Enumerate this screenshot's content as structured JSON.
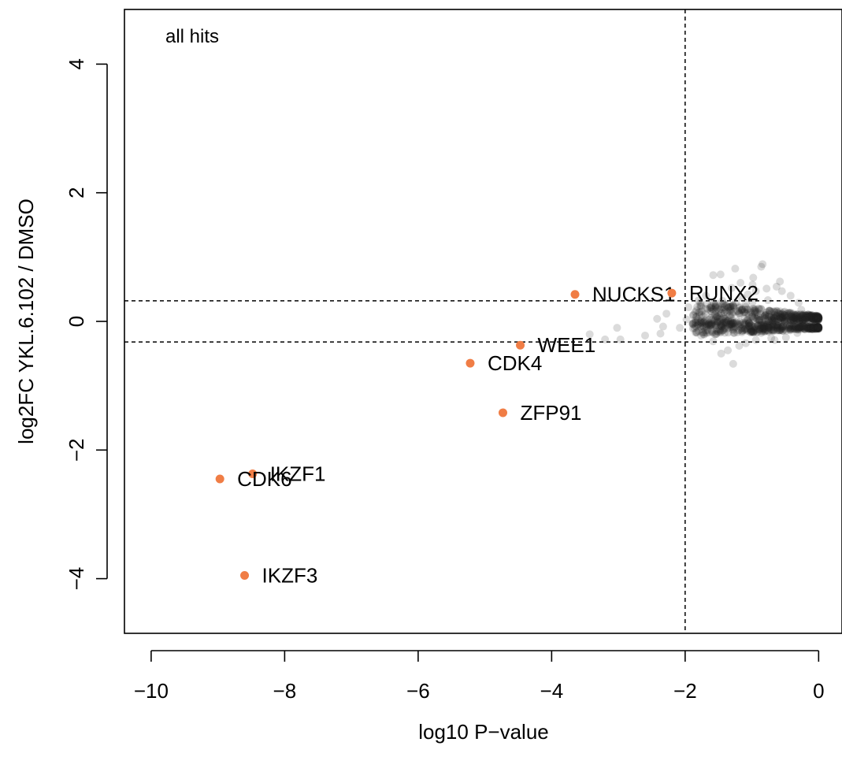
{
  "chart_data": {
    "type": "scatter",
    "panel_label": "all hits",
    "xlabel": "log10 P−value",
    "ylabel": "log2FC  YKL.6.102  / DMSO",
    "xlim": [
      -10.4,
      0.35
    ],
    "ylim": [
      -4.85,
      4.85
    ],
    "x_ticks": [
      -10,
      -8,
      -6,
      -4,
      -2,
      0
    ],
    "x_tick_labels": [
      "−10",
      "−8",
      "−6",
      "−4",
      "−2",
      "0"
    ],
    "y_ticks": [
      -4,
      -2,
      0,
      2,
      4
    ],
    "y_tick_labels": [
      "−4",
      "−2",
      "0",
      "2",
      "4"
    ],
    "threshold_lines": {
      "x": [
        -2
      ],
      "y": [
        0.32,
        -0.32
      ]
    },
    "colors": {
      "highlight": "#f07d45",
      "background_points": "#202020",
      "axis": "#000000"
    },
    "highlighted_hits": [
      {
        "gene": "NUCKS1",
        "x": -3.65,
        "y": 0.42
      },
      {
        "gene": "RUNX2",
        "x": -2.2,
        "y": 0.44
      },
      {
        "gene": "WEE1",
        "x": -4.47,
        "y": -0.37
      },
      {
        "gene": "CDK4",
        "x": -5.22,
        "y": -0.65
      },
      {
        "gene": "ZFP91",
        "x": -4.73,
        "y": -1.42
      },
      {
        "gene": "IKZF1",
        "x": -8.48,
        "y": -2.37
      },
      {
        "gene": "CDK6",
        "x": -8.97,
        "y": -2.45
      },
      {
        "gene": "IKZF3",
        "x": -8.6,
        "y": -3.95
      }
    ],
    "background_points": [
      [
        -1.58,
        0.72
      ],
      [
        -1.47,
        0.73
      ],
      [
        -1.17,
        0.6
      ],
      [
        -0.98,
        0.68
      ],
      [
        -0.86,
        0.85
      ],
      [
        -0.84,
        0.89
      ],
      [
        -0.94,
        0.47
      ],
      [
        -1.06,
        0.42
      ],
      [
        -1.3,
        0.52
      ],
      [
        -1.44,
        0.32
      ],
      [
        -1.67,
        0.27
      ],
      [
        -1.8,
        0.14
      ],
      [
        -2.28,
        0.12
      ],
      [
        -1.95,
        0.22
      ],
      [
        -1.69,
        0.4
      ],
      [
        -1.25,
        0.82
      ],
      [
        -1.15,
        0.37
      ],
      [
        -0.99,
        0.57
      ],
      [
        -0.63,
        0.54
      ],
      [
        -0.55,
        0.47
      ],
      [
        -0.42,
        0.4
      ],
      [
        -0.3,
        0.29
      ],
      [
        -0.58,
        0.62
      ],
      [
        -0.78,
        0.51
      ],
      [
        -2.6,
        -0.22
      ],
      [
        -2.37,
        -0.19
      ],
      [
        -2.97,
        -0.28
      ],
      [
        -3.2,
        -0.28
      ],
      [
        -3.43,
        -0.2
      ],
      [
        -3.02,
        -0.1
      ],
      [
        -2.42,
        0.04
      ],
      [
        -2.08,
        -0.1
      ],
      [
        -2.33,
        -0.08
      ],
      [
        -1.76,
        -0.22
      ],
      [
        -1.58,
        -0.31
      ],
      [
        -1.46,
        -0.5
      ],
      [
        -1.28,
        -0.66
      ],
      [
        -1.36,
        -0.45
      ],
      [
        -1.19,
        -0.38
      ],
      [
        -1.09,
        -0.34
      ],
      [
        -1.67,
        -0.18
      ],
      [
        -1.53,
        -0.15
      ],
      [
        -0.94,
        -0.29
      ],
      [
        -0.66,
        -0.29
      ],
      [
        -0.49,
        -0.25
      ],
      [
        -0.32,
        -0.18
      ],
      [
        -0.21,
        -0.12
      ],
      [
        -0.12,
        -0.07
      ],
      [
        -1.85,
        -0.02
      ],
      [
        -1.98,
        0.03
      ],
      [
        -1.35,
        0.22
      ],
      [
        -1.24,
        0.29
      ],
      [
        -1.09,
        0.28
      ],
      [
        -0.99,
        0.3
      ],
      [
        -1.72,
        0.08
      ],
      [
        -1.61,
        -0.04
      ],
      [
        -0.76,
        0.33
      ],
      [
        -0.71,
        -0.26
      ],
      [
        -0.86,
        -0.18
      ],
      [
        -0.38,
        0.12
      ],
      [
        -0.26,
        0.18
      ],
      [
        -0.16,
        0.11
      ],
      [
        -0.06,
        0.05
      ],
      [
        -1.52,
        0.07
      ],
      [
        -1.41,
        -0.09
      ],
      [
        -1.3,
        0.12
      ]
    ]
  }
}
